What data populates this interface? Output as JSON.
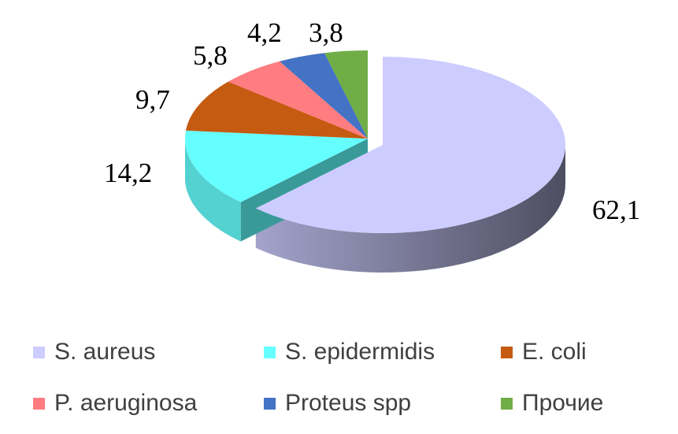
{
  "chart_data": {
    "type": "pie",
    "style": "3d-exploded",
    "title": "",
    "categories": [
      "S. aureus",
      "S. epidermidis",
      "E. coli",
      "P. aeruginosa",
      "Proteus spp",
      "Прочие"
    ],
    "values": [
      62.1,
      14.2,
      9.7,
      5.8,
      4.2,
      3.8
    ],
    "data_labels": [
      "62,1",
      "14,2",
      "9,7",
      "5,8",
      "4,2",
      "3,8"
    ],
    "colors": [
      "#CCCCFF",
      "#66FFFF",
      "#C55A11",
      "#FF7C80",
      "#4472C4",
      "#70AD47"
    ],
    "legend_position": "bottom"
  }
}
